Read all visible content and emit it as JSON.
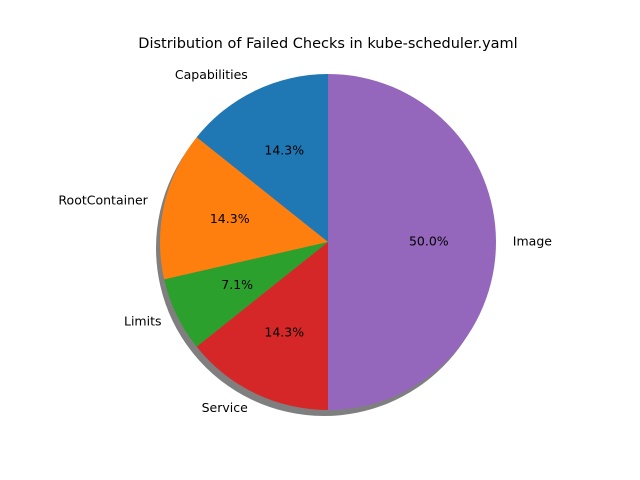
{
  "chart_data": {
    "type": "pie",
    "title": "Distribution of Failed Checks in kube-scheduler.yaml",
    "categories": [
      "Capabilities",
      "RootContainer",
      "Limits",
      "Service",
      "Image"
    ],
    "values": [
      2,
      2,
      1,
      2,
      7
    ],
    "percent_labels": [
      "14.3%",
      "14.3%",
      "7.1%",
      "14.3%",
      "50.0%"
    ],
    "colors": [
      "#1f77b4",
      "#ff7f0e",
      "#2ca02c",
      "#d62728",
      "#9467bd"
    ],
    "start_angle_deg": 90,
    "direction": "counterclockwise",
    "shadow": true,
    "legend": "none"
  }
}
